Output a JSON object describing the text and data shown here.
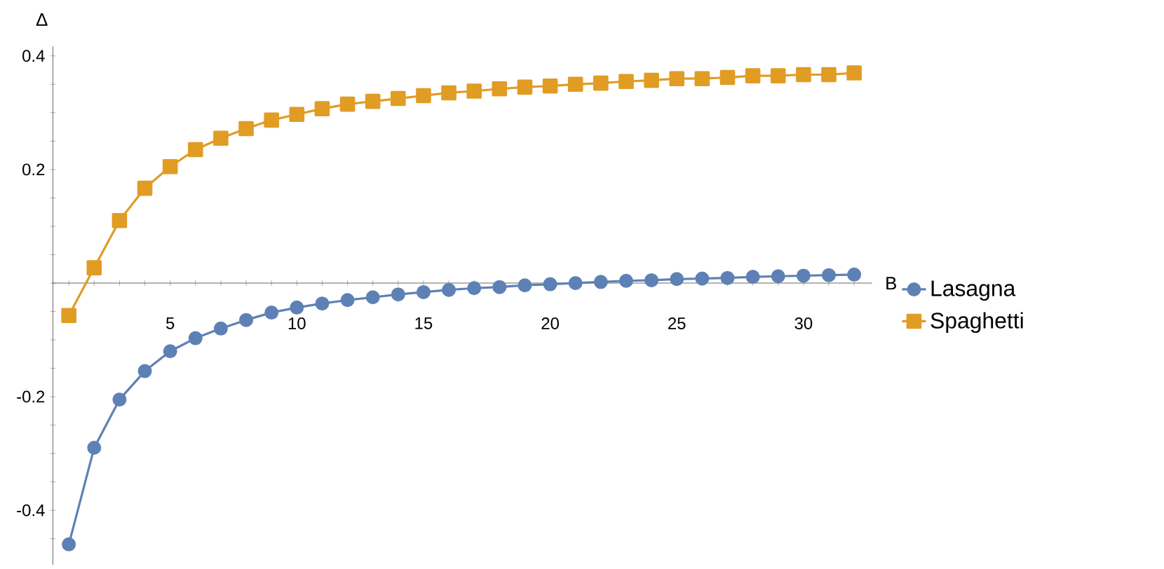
{
  "chart_data": {
    "type": "line",
    "xlabel": "B",
    "ylabel": "Δ",
    "x": [
      1,
      2,
      3,
      4,
      5,
      6,
      7,
      8,
      9,
      10,
      11,
      12,
      13,
      14,
      15,
      16,
      17,
      18,
      19,
      20,
      21,
      22,
      23,
      24,
      25,
      26,
      27,
      28,
      29,
      30,
      31,
      32
    ],
    "series": [
      {
        "name": "Lasagna",
        "color": "#5e81b5",
        "marker": "circle",
        "values": [
          -0.46,
          -0.29,
          -0.205,
          -0.155,
          -0.12,
          -0.097,
          -0.08,
          -0.065,
          -0.052,
          -0.043,
          -0.036,
          -0.03,
          -0.025,
          -0.02,
          -0.016,
          -0.012,
          -0.009,
          -0.007,
          -0.004,
          -0.002,
          0,
          0.002,
          0.004,
          0.005,
          0.007,
          0.008,
          0.009,
          0.011,
          0.012,
          0.013,
          0.014,
          0.015
        ]
      },
      {
        "name": "Spaghetti",
        "color": "#e19c24",
        "marker": "square",
        "values": [
          -0.057,
          0.027,
          0.11,
          0.167,
          0.205,
          0.235,
          0.255,
          0.272,
          0.287,
          0.297,
          0.307,
          0.315,
          0.32,
          0.325,
          0.33,
          0.335,
          0.338,
          0.342,
          0.345,
          0.347,
          0.35,
          0.352,
          0.355,
          0.357,
          0.36,
          0.36,
          0.362,
          0.365,
          0.365,
          0.367,
          0.367,
          0.37
        ]
      }
    ],
    "xlim": [
      0.37,
      32.7
    ],
    "ylim": [
      -0.496,
      0.417
    ],
    "xticks": [
      {
        "value": 1,
        "label": null
      },
      {
        "value": 2,
        "label": null
      },
      {
        "value": 3,
        "label": null
      },
      {
        "value": 4,
        "label": null
      },
      5,
      {
        "value": 6,
        "label": null
      },
      {
        "value": 7,
        "label": null
      },
      {
        "value": 8,
        "label": null
      },
      {
        "value": 9,
        "label": null
      },
      10,
      {
        "value": 11,
        "label": null
      },
      {
        "value": 12,
        "label": null
      },
      {
        "value": 13,
        "label": null
      },
      {
        "value": 14,
        "label": null
      },
      15,
      {
        "value": 16,
        "label": null
      },
      {
        "value": 17,
        "label": null
      },
      {
        "value": 18,
        "label": null
      },
      {
        "value": 19,
        "label": null
      },
      20,
      {
        "value": 21,
        "label": null
      },
      {
        "value": 22,
        "label": null
      },
      {
        "value": 23,
        "label": null
      },
      {
        "value": 24,
        "label": null
      },
      25,
      {
        "value": 26,
        "label": null
      },
      {
        "value": 27,
        "label": null
      },
      {
        "value": 28,
        "label": null
      },
      {
        "value": 29,
        "label": null
      },
      30,
      {
        "value": 31,
        "label": null
      },
      {
        "value": 32,
        "label": null
      }
    ],
    "yticks": [
      {
        "value": -0.45,
        "label": null
      },
      -0.4,
      {
        "value": -0.35,
        "label": null
      },
      {
        "value": -0.3,
        "label": null
      },
      {
        "value": -0.25,
        "label": null
      },
      -0.2,
      {
        "value": -0.15,
        "label": null
      },
      {
        "value": -0.1,
        "label": null
      },
      {
        "value": -0.05,
        "label": null
      },
      {
        "value": 0,
        "label": null
      },
      {
        "value": 0.05,
        "label": null
      },
      {
        "value": 0.1,
        "label": null
      },
      {
        "value": 0.15,
        "label": null
      },
      0.2,
      {
        "value": 0.25,
        "label": null
      },
      {
        "value": 0.3,
        "label": null
      },
      {
        "value": 0.35,
        "label": null
      },
      0.4
    ],
    "legend": "right",
    "grid": false,
    "line_style": "solid"
  }
}
